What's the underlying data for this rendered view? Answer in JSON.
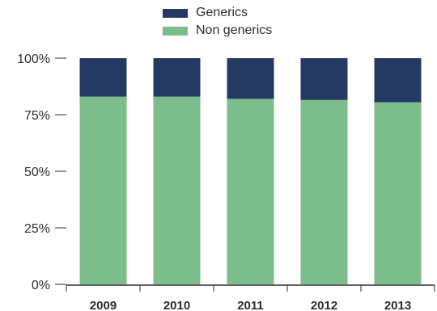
{
  "chart_data": {
    "type": "bar",
    "stacked": true,
    "categories": [
      "2009",
      "2010",
      "2011",
      "2012",
      "2013"
    ],
    "series": [
      {
        "name": "Non generics",
        "values": [
          83,
          83,
          82,
          81.5,
          80.5
        ],
        "color": "#7cbd8c"
      },
      {
        "name": "Generics",
        "values": [
          17,
          17,
          18,
          18.5,
          19.5
        ],
        "color": "#243a63"
      }
    ],
    "y_ticks": [
      "0%",
      "25%",
      "50%",
      "75%",
      "100%"
    ],
    "ylim": [
      0,
      100
    ],
    "title": "",
    "xlabel": "",
    "ylabel": "",
    "legend_position": "top-center",
    "grid": false
  }
}
